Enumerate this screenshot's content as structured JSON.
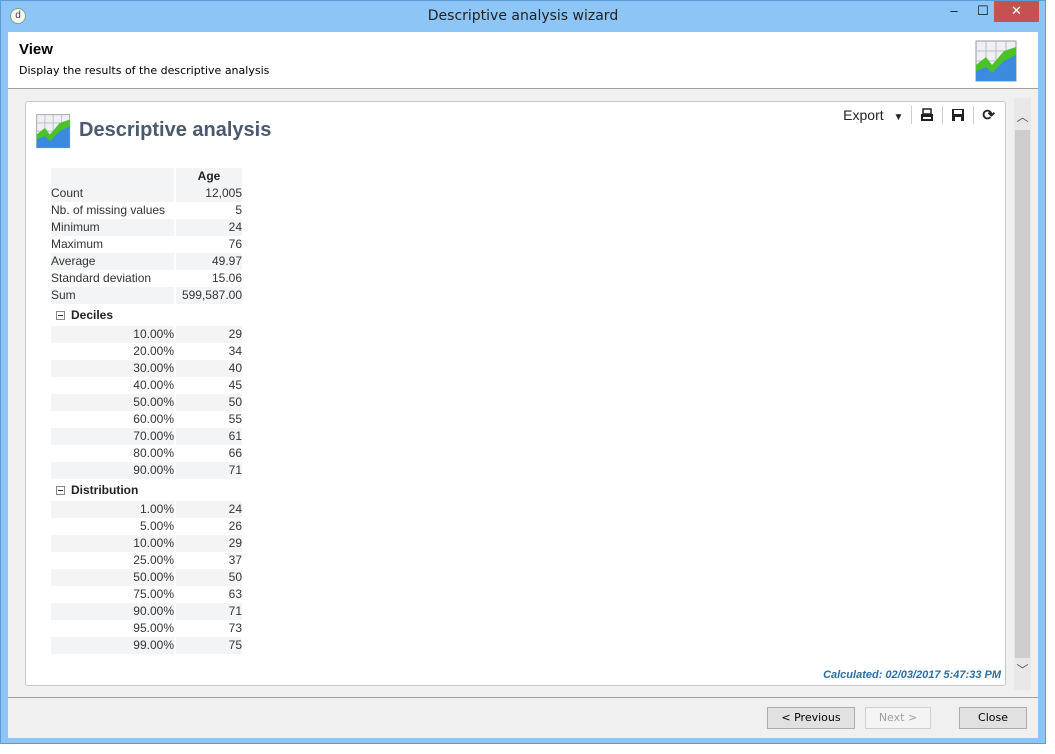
{
  "window": {
    "title": "Descriptive analysis wizard",
    "min": "–",
    "max": "☐",
    "close": "✕"
  },
  "header": {
    "title": "View",
    "subtitle": "Display the results of the descriptive analysis"
  },
  "panel": {
    "title": "Descriptive analysis",
    "export_label": "Export",
    "calculated": "Calculated: 02/03/2017 5:47:33 PM"
  },
  "table": {
    "column": "Age",
    "stats": [
      {
        "label": "Count",
        "value": "12,005"
      },
      {
        "label": "Nb. of missing values",
        "value": "5"
      },
      {
        "label": "Minimum",
        "value": "24"
      },
      {
        "label": "Maximum",
        "value": "76"
      },
      {
        "label": "Average",
        "value": "49.97"
      },
      {
        "label": "Standard deviation",
        "value": "15.06"
      },
      {
        "label": "Sum",
        "value": "599,587.00"
      }
    ],
    "deciles_label": "Deciles",
    "deciles": [
      {
        "label": "10.00%",
        "value": "29"
      },
      {
        "label": "20.00%",
        "value": "34"
      },
      {
        "label": "30.00%",
        "value": "40"
      },
      {
        "label": "40.00%",
        "value": "45"
      },
      {
        "label": "50.00%",
        "value": "50"
      },
      {
        "label": "60.00%",
        "value": "55"
      },
      {
        "label": "70.00%",
        "value": "61"
      },
      {
        "label": "80.00%",
        "value": "66"
      },
      {
        "label": "90.00%",
        "value": "71"
      }
    ],
    "distribution_label": "Distribution",
    "distribution": [
      {
        "label": "1.00%",
        "value": "24"
      },
      {
        "label": "5.00%",
        "value": "26"
      },
      {
        "label": "10.00%",
        "value": "29"
      },
      {
        "label": "25.00%",
        "value": "37"
      },
      {
        "label": "50.00%",
        "value": "50"
      },
      {
        "label": "75.00%",
        "value": "63"
      },
      {
        "label": "90.00%",
        "value": "71"
      },
      {
        "label": "95.00%",
        "value": "73"
      },
      {
        "label": "99.00%",
        "value": "75"
      }
    ]
  },
  "footer": {
    "previous": "< Previous",
    "next": "Next >",
    "close": "Close"
  },
  "icons": {
    "app": "app-icon",
    "chart": "chart-icon",
    "print": "print-icon",
    "save": "save-icon",
    "refresh": "refresh-icon"
  }
}
